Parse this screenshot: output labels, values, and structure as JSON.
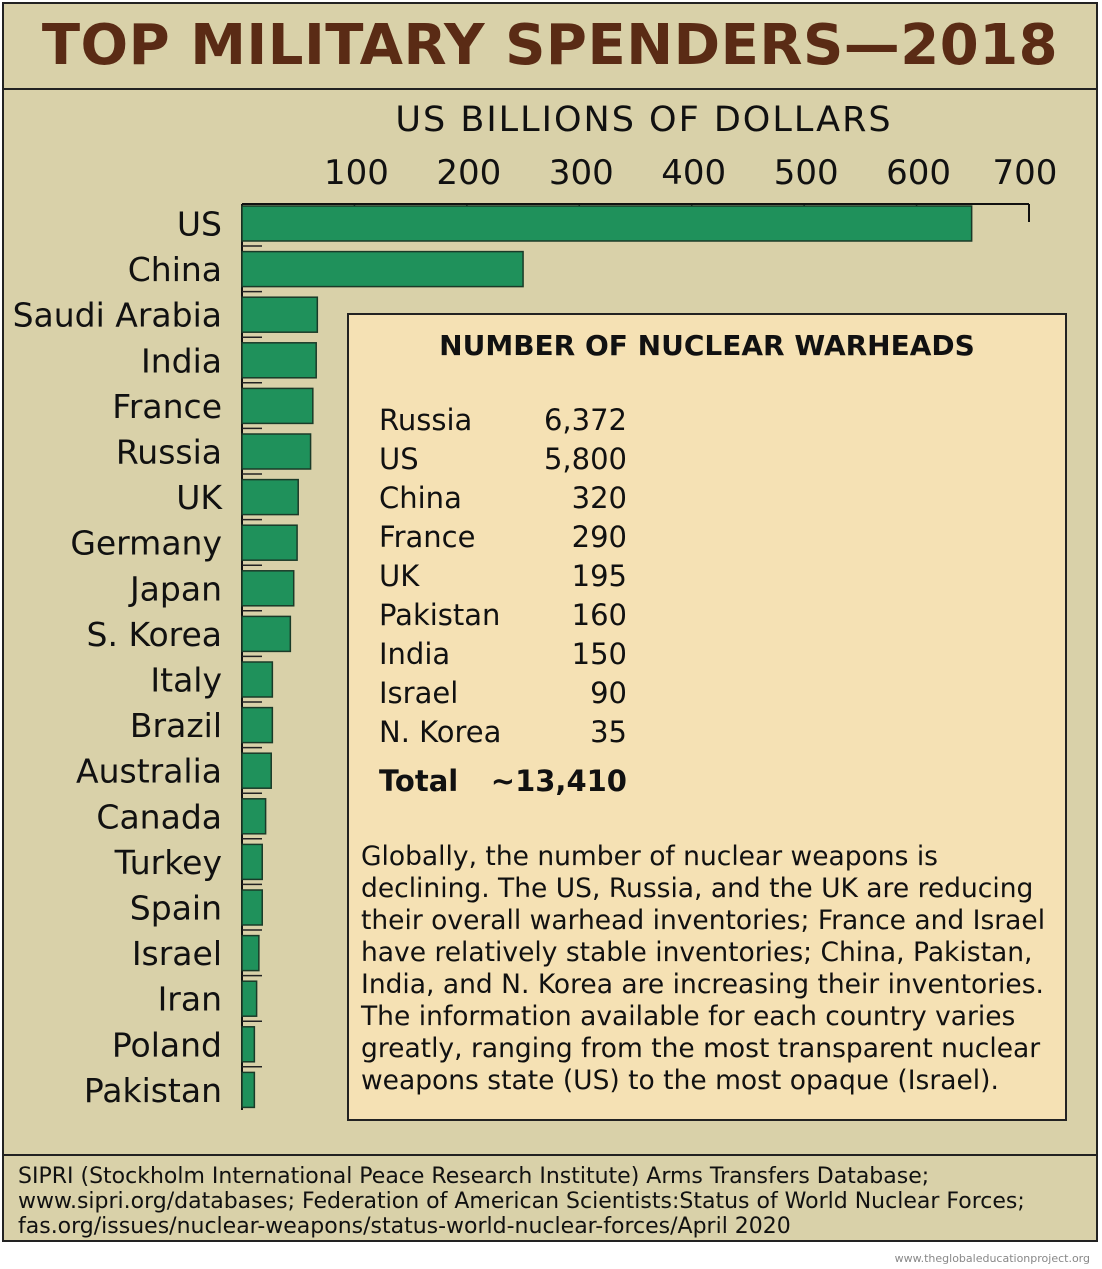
{
  "title": "TOP MILITARY SPENDERS—2018",
  "chart_data": {
    "type": "bar",
    "orientation": "horizontal",
    "title": "TOP MILITARY SPENDERS—2018",
    "xlabel": "US BILLIONS OF DOLLARS",
    "xlim": [
      0,
      700
    ],
    "xticks": [
      100,
      200,
      300,
      400,
      500,
      600,
      700
    ],
    "categories": [
      "US",
      "China",
      "Saudi Arabia",
      "India",
      "France",
      "Russia",
      "UK",
      "Germany",
      "Japan",
      "S. Korea",
      "Italy",
      "Brazil",
      "Australia",
      "Canada",
      "Turkey",
      "Spain",
      "Israel",
      "Iran",
      "Poland",
      "Pakistan"
    ],
    "values": [
      649,
      250,
      67,
      66,
      63,
      61,
      50,
      49,
      46,
      43,
      27,
      27,
      26,
      21,
      18,
      18,
      15,
      13,
      11,
      11
    ],
    "bar_color": "#1f915b",
    "grid": false
  },
  "inset": {
    "title": "NUMBER OF NUCLEAR WARHEADS",
    "rows": [
      {
        "country": "Russia",
        "value": "6,372"
      },
      {
        "country": "US",
        "value": "5,800"
      },
      {
        "country": "China",
        "value": "320"
      },
      {
        "country": "France",
        "value": "290"
      },
      {
        "country": "UK",
        "value": "195"
      },
      {
        "country": "Pakistan",
        "value": "160"
      },
      {
        "country": "India",
        "value": "150"
      },
      {
        "country": "Israel",
        "value": "90"
      },
      {
        "country": "N. Korea",
        "value": "35"
      }
    ],
    "total_label": "Total",
    "total_value": "~13,410",
    "note": "Globally, the number of nuclear weapons is declining. The US, Russia, and the UK are reducing their overall warhead inventories; France and Israel have relatively stable inventories; China, Pakistan, India, and N. Korea are increasing their inventories. The information available for each country varies greatly, ranging from the most transparent nuclear weapons state (US) to the most opaque (Israel)."
  },
  "source": "SIPRI (Stockholm International Peace Research Institute) Arms Transfers Database; www.sipri.org/databases; Federation of American Scientists:Status of World Nuclear Forces; fas.org/issues/nuclear-weapons/status-world-nuclear-forces/April 2020",
  "credit": "www.theglobaleducationproject.org",
  "colors": {
    "background": "#d9d1a9",
    "inset": "#f5e1b4",
    "title": "#5a2b15",
    "bars": "#1f915b"
  }
}
